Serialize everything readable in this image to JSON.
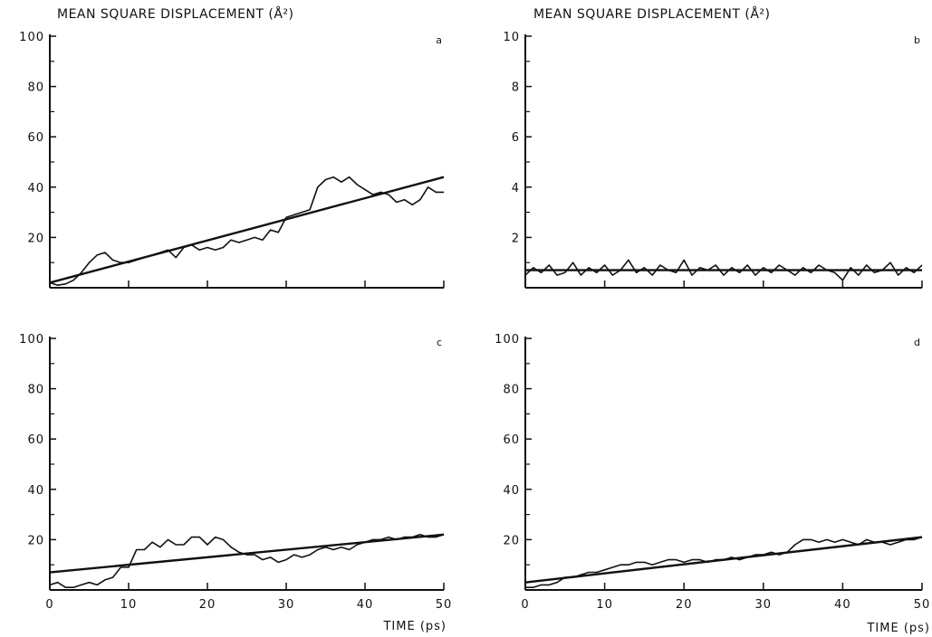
{
  "figure": {
    "ylabel": "MEAN SQUARE DISPLACEMENT (Å²)",
    "xlabel": "TIME (ps)"
  },
  "chart_data": [
    {
      "panel": "a",
      "type": "line",
      "xlabel": "TIME (ps)",
      "ylabel": "MEAN SQUARE DISPLACEMENT (Å²)",
      "xlim": [
        0,
        50
      ],
      "ylim": [
        0,
        100
      ],
      "xticks": [
        0,
        10,
        20,
        30,
        40,
        50
      ],
      "xtick_labels_shown": false,
      "yticks": [
        0,
        20,
        40,
        60,
        80,
        100
      ],
      "ytick_labels": [
        "20",
        "40",
        "60",
        "80",
        "100"
      ],
      "series": [
        {
          "x": [
            0,
            1,
            2,
            3,
            4,
            5,
            6,
            7,
            8,
            9,
            10,
            11,
            12,
            13,
            14,
            15,
            16,
            17,
            18,
            19,
            20,
            21,
            22,
            23,
            24,
            25,
            26,
            27,
            28,
            29,
            30,
            31,
            32,
            33,
            34,
            35,
            36,
            37,
            38,
            39,
            40,
            41,
            42,
            43,
            44,
            45,
            46,
            47,
            48,
            49,
            50
          ],
          "values": [
            2,
            1,
            1.5,
            3,
            6,
            10,
            13,
            14,
            11,
            10,
            10,
            11,
            12,
            13,
            14,
            15,
            12,
            16,
            17,
            15,
            16,
            15,
            16,
            19,
            18,
            19,
            20,
            19,
            23,
            22,
            28,
            29,
            30,
            31,
            40,
            43,
            44,
            42,
            44,
            41,
            39,
            37,
            38,
            37,
            34,
            35,
            33,
            35,
            40,
            38,
            38
          ]
        },
        {
          "fit": [
            2,
            44
          ]
        }
      ]
    },
    {
      "panel": "b",
      "type": "line",
      "xlabel": "",
      "ylabel": "MEAN SQUARE DISPLACEMENT (Å²)",
      "xlim": [
        0,
        50
      ],
      "ylim": [
        0,
        10
      ],
      "xticks": [
        0,
        10,
        20,
        30,
        40,
        50
      ],
      "xtick_labels_shown": false,
      "yticks": [
        0,
        2,
        4,
        6,
        8,
        10
      ],
      "ytick_labels": [
        "2",
        "4",
        "6",
        "8",
        "10"
      ],
      "series": [
        {
          "x": [
            0,
            1,
            2,
            3,
            4,
            5,
            6,
            7,
            8,
            9,
            10,
            11,
            12,
            13,
            14,
            15,
            16,
            17,
            18,
            19,
            20,
            21,
            22,
            23,
            24,
            25,
            26,
            27,
            28,
            29,
            30,
            31,
            32,
            33,
            34,
            35,
            36,
            37,
            38,
            39,
            40,
            41,
            42,
            43,
            44,
            45,
            46,
            47,
            48,
            49,
            50
          ],
          "values": [
            0.5,
            0.8,
            0.6,
            0.9,
            0.5,
            0.6,
            1.0,
            0.5,
            0.8,
            0.6,
            0.9,
            0.5,
            0.7,
            1.1,
            0.6,
            0.8,
            0.5,
            0.9,
            0.7,
            0.6,
            1.1,
            0.5,
            0.8,
            0.7,
            0.9,
            0.5,
            0.8,
            0.6,
            0.9,
            0.5,
            0.8,
            0.6,
            0.9,
            0.7,
            0.5,
            0.8,
            0.6,
            0.9,
            0.7,
            0.6,
            0.3,
            0.8,
            0.5,
            0.9,
            0.6,
            0.7,
            1.0,
            0.5,
            0.8,
            0.6,
            0.9
          ]
        },
        {
          "fit": [
            0.7,
            0.7
          ]
        }
      ]
    },
    {
      "panel": "c",
      "type": "line",
      "xlabel": "TIME (ps)",
      "ylabel": "",
      "xlim": [
        0,
        50
      ],
      "ylim": [
        0,
        100
      ],
      "xticks": [
        0,
        10,
        20,
        30,
        40,
        50
      ],
      "xtick_labels": [
        "0",
        "10",
        "20",
        "30",
        "40",
        "50"
      ],
      "yticks": [
        0,
        20,
        40,
        60,
        80,
        100
      ],
      "ytick_labels": [
        "20",
        "40",
        "60",
        "80",
        "100"
      ],
      "series": [
        {
          "x": [
            0,
            1,
            2,
            3,
            4,
            5,
            6,
            7,
            8,
            9,
            10,
            11,
            12,
            13,
            14,
            15,
            16,
            17,
            18,
            19,
            20,
            21,
            22,
            23,
            24,
            25,
            26,
            27,
            28,
            29,
            30,
            31,
            32,
            33,
            34,
            35,
            36,
            37,
            38,
            39,
            40,
            41,
            42,
            43,
            44,
            45,
            46,
            47,
            48,
            49,
            50
          ],
          "values": [
            2,
            3,
            1,
            1,
            2,
            3,
            2,
            4,
            5,
            9,
            9,
            16,
            16,
            19,
            17,
            20,
            18,
            18,
            21,
            21,
            18,
            21,
            20,
            17,
            15,
            14,
            14,
            12,
            13,
            11,
            12,
            14,
            13,
            14,
            16,
            17,
            16,
            17,
            16,
            18,
            19,
            20,
            20,
            21,
            20,
            21,
            21,
            22,
            21,
            21,
            22
          ]
        },
        {
          "fit": [
            7,
            22
          ]
        }
      ]
    },
    {
      "panel": "d",
      "type": "line",
      "xlabel": "TIME (ps)",
      "ylabel": "",
      "xlim": [
        0,
        50
      ],
      "ylim": [
        0,
        100
      ],
      "xticks": [
        0,
        10,
        20,
        30,
        40,
        50
      ],
      "xtick_labels": [
        "0",
        "10",
        "20",
        "30",
        "40",
        "50"
      ],
      "yticks": [
        0,
        20,
        40,
        60,
        80,
        100
      ],
      "ytick_labels": [
        "20",
        "40",
        "60",
        "80",
        "100"
      ],
      "series": [
        {
          "x": [
            0,
            1,
            2,
            3,
            4,
            5,
            6,
            7,
            8,
            9,
            10,
            11,
            12,
            13,
            14,
            15,
            16,
            17,
            18,
            19,
            20,
            21,
            22,
            23,
            24,
            25,
            26,
            27,
            28,
            29,
            30,
            31,
            32,
            33,
            34,
            35,
            36,
            37,
            38,
            39,
            40,
            41,
            42,
            43,
            44,
            45,
            46,
            47,
            48,
            49,
            50
          ],
          "values": [
            1,
            1,
            2,
            2,
            3,
            5,
            5,
            6,
            7,
            7,
            8,
            9,
            10,
            10,
            11,
            11,
            10,
            11,
            12,
            12,
            11,
            12,
            12,
            11,
            12,
            12,
            13,
            12,
            13,
            14,
            14,
            15,
            14,
            15,
            18,
            20,
            20,
            19,
            20,
            19,
            20,
            19,
            18,
            20,
            19,
            19,
            18,
            19,
            20,
            20,
            21
          ]
        },
        {
          "fit": [
            3,
            21
          ]
        }
      ]
    }
  ]
}
